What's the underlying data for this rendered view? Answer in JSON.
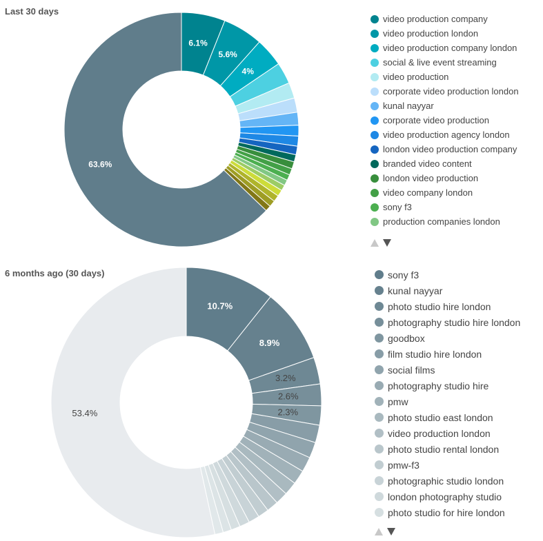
{
  "chart_data": [
    {
      "type": "pie",
      "title": "Last 30 days",
      "legend_position": "right",
      "shown_percent_labels": [
        "6.1%",
        "5.6%",
        "4%",
        "63.6%"
      ],
      "slices": [
        {
          "label": "video production company",
          "value": 6.1,
          "color": "#00838f"
        },
        {
          "label": "video production london",
          "value": 5.6,
          "color": "#0097a7"
        },
        {
          "label": "video production company london",
          "value": 4.0,
          "color": "#00acc1"
        },
        {
          "label": "social & live event streaming",
          "value": 3.0,
          "color": "#4dd0e1"
        },
        {
          "label": "video production",
          "value": 2.2,
          "color": "#b2ebf2"
        },
        {
          "label": "corporate video production london",
          "value": 2.0,
          "color": "#bbdefb"
        },
        {
          "label": "kunal nayyar",
          "value": 1.8,
          "color": "#64b5f6"
        },
        {
          "label": "corporate video production",
          "value": 1.5,
          "color": "#2196f3"
        },
        {
          "label": "video production agency london",
          "value": 1.4,
          "color": "#1e88e5"
        },
        {
          "label": "london video production company",
          "value": 1.2,
          "color": "#1565c0"
        },
        {
          "label": "branded video content",
          "value": 1.0,
          "color": "#00695c"
        },
        {
          "label": "london video production",
          "value": 1.0,
          "color": "#388e3c"
        },
        {
          "label": "video company london",
          "value": 0.9,
          "color": "#43a047"
        },
        {
          "label": "sony f3",
          "value": 0.8,
          "color": "#4caf50"
        },
        {
          "label": "production companies london",
          "value": 0.8,
          "color": "#81c784"
        },
        {
          "label": "",
          "value": 0.8,
          "color": "#9ccc65"
        },
        {
          "label": "",
          "value": 0.9,
          "color": "#cddc39"
        },
        {
          "label": "",
          "value": 0.9,
          "color": "#afb42b"
        },
        {
          "label": "",
          "value": 0.9,
          "color": "#9e9d24"
        },
        {
          "label": "",
          "value": 0.8,
          "color": "#827717"
        },
        {
          "label": "",
          "value": 63.6,
          "color": "#607d8b"
        }
      ],
      "legend": [
        {
          "label": "video production company",
          "color": "#00838f"
        },
        {
          "label": "video production london",
          "color": "#0097a7"
        },
        {
          "label": "video production company london",
          "color": "#00acc1"
        },
        {
          "label": "social & live event streaming",
          "color": "#4dd0e1"
        },
        {
          "label": "video production",
          "color": "#b2ebf2"
        },
        {
          "label": "corporate video production london",
          "color": "#bbdefb"
        },
        {
          "label": "kunal nayyar",
          "color": "#64b5f6"
        },
        {
          "label": "corporate video production",
          "color": "#2196f3"
        },
        {
          "label": "video production agency london",
          "color": "#1e88e5"
        },
        {
          "label": "london video production company",
          "color": "#1565c0"
        },
        {
          "label": "branded video content",
          "color": "#00695c"
        },
        {
          "label": "london video production",
          "color": "#388e3c"
        },
        {
          "label": "video company london",
          "color": "#43a047"
        },
        {
          "label": "sony f3",
          "color": "#4caf50"
        },
        {
          "label": "production companies london",
          "color": "#81c784"
        }
      ]
    },
    {
      "type": "pie",
      "title": "6 months ago (30 days)",
      "legend_position": "right",
      "shown_percent_labels": [
        "10.7%",
        "8.9%",
        "3.2%",
        "2.6%",
        "2.3%",
        "53.4%"
      ],
      "slices": [
        {
          "label": "sony f3",
          "value": 10.7,
          "color": "#607d8b"
        },
        {
          "label": "kunal nayyar",
          "value": 8.9,
          "color": "#66818e"
        },
        {
          "label": "photo studio hire london",
          "value": 3.2,
          "color": "#6e8894"
        },
        {
          "label": "photography studio hire london",
          "value": 2.6,
          "color": "#778f9a"
        },
        {
          "label": "goodbox",
          "value": 2.3,
          "color": "#7f96a0"
        },
        {
          "label": "film studio hire london",
          "value": 2.1,
          "color": "#889da7"
        },
        {
          "label": "social films",
          "value": 1.9,
          "color": "#90a4ad"
        },
        {
          "label": "photography studio hire",
          "value": 1.8,
          "color": "#99abb3"
        },
        {
          "label": "pmw",
          "value": 1.7,
          "color": "#a1b2b9"
        },
        {
          "label": "photo studio east london",
          "value": 1.6,
          "color": "#a9b9bf"
        },
        {
          "label": "video production london",
          "value": 1.5,
          "color": "#b1bfc5"
        },
        {
          "label": "photo studio rental london",
          "value": 1.4,
          "color": "#b9c6cb"
        },
        {
          "label": "pmw-f3",
          "value": 1.3,
          "color": "#c1cdd1"
        },
        {
          "label": "photographic studio london",
          "value": 1.3,
          "color": "#c8d3d7"
        },
        {
          "label": "london photography studio",
          "value": 1.2,
          "color": "#cfd9dc"
        },
        {
          "label": "photo studio for hire london",
          "value": 1.1,
          "color": "#d6dfe1"
        },
        {
          "label": "",
          "value": 1.0,
          "color": "#dce4e6"
        },
        {
          "label": "",
          "value": 1.0,
          "color": "#e1e8ea"
        },
        {
          "label": "",
          "value": 53.4,
          "color": "#e8ebee"
        }
      ],
      "legend": [
        {
          "label": "sony f3",
          "color": "#607d8b"
        },
        {
          "label": "kunal nayyar",
          "color": "#66818e"
        },
        {
          "label": "photo studio hire london",
          "color": "#6e8894"
        },
        {
          "label": "photography studio hire london",
          "color": "#778f9a"
        },
        {
          "label": "goodbox",
          "color": "#7f96a0"
        },
        {
          "label": "film studio hire london",
          "color": "#889da7"
        },
        {
          "label": "social films",
          "color": "#90a4ad"
        },
        {
          "label": "photography studio hire",
          "color": "#99abb3"
        },
        {
          "label": "pmw",
          "color": "#a1b2b9"
        },
        {
          "label": "photo studio east london",
          "color": "#a9b9bf"
        },
        {
          "label": "video production london",
          "color": "#b1bfc5"
        },
        {
          "label": "photo studio rental london",
          "color": "#b9c6cb"
        },
        {
          "label": "pmw-f3",
          "color": "#c1cdd1"
        },
        {
          "label": "photographic studio london",
          "color": "#c8d3d7"
        },
        {
          "label": "london photography studio",
          "color": "#cfd9dc"
        },
        {
          "label": "photo studio for hire london",
          "color": "#d6dfe1"
        }
      ]
    }
  ]
}
